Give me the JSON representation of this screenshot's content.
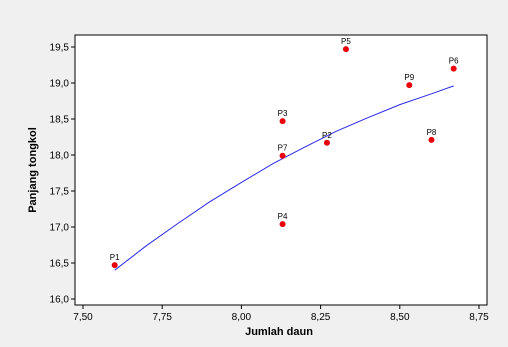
{
  "colors": {
    "background": "#ffffff",
    "frame_fill": "#f0f0f0",
    "plot_fill": "#ffffff",
    "point": "#e8000a",
    "fit_line": "#2a2ae6",
    "axis": "#000000"
  },
  "chart_data": {
    "type": "scatter",
    "title": "",
    "xlabel": "Jumlah daun",
    "ylabel": "Panjang tongkol",
    "xlim": [
      7.5,
      8.75
    ],
    "ylim": [
      16.0,
      19.5
    ],
    "x_ticks": [
      7.5,
      7.75,
      8.0,
      8.25,
      8.5,
      8.75
    ],
    "x_tick_labels": [
      "7,50",
      "7,75",
      "8,00",
      "8,25",
      "8,50",
      "8,75"
    ],
    "y_ticks": [
      16.0,
      16.5,
      17.0,
      17.5,
      18.0,
      18.5,
      19.0,
      19.5
    ],
    "y_tick_labels": [
      "16,0",
      "16,5",
      "17,0",
      "17,5",
      "18,0",
      "18,5",
      "19,0",
      "19,5"
    ],
    "grid": false,
    "points": [
      {
        "label": "P1",
        "x": 7.6,
        "y": 16.47
      },
      {
        "label": "P2",
        "x": 8.27,
        "y": 18.17
      },
      {
        "label": "P3",
        "x": 8.13,
        "y": 18.47
      },
      {
        "label": "P4",
        "x": 8.13,
        "y": 17.04
      },
      {
        "label": "P5",
        "x": 8.33,
        "y": 19.47
      },
      {
        "label": "P6",
        "x": 8.67,
        "y": 19.2
      },
      {
        "label": "P7",
        "x": 8.13,
        "y": 17.99
      },
      {
        "label": "P8",
        "x": 8.6,
        "y": 18.21
      },
      {
        "label": "P9",
        "x": 8.53,
        "y": 18.97
      }
    ],
    "fit_curve": {
      "x": [
        7.6,
        7.7,
        7.8,
        7.9,
        8.0,
        8.1,
        8.2,
        8.3,
        8.4,
        8.5,
        8.6,
        8.67
      ],
      "y": [
        16.4,
        16.74,
        17.05,
        17.35,
        17.62,
        17.88,
        18.11,
        18.33,
        18.52,
        18.7,
        18.85,
        18.96
      ]
    }
  }
}
